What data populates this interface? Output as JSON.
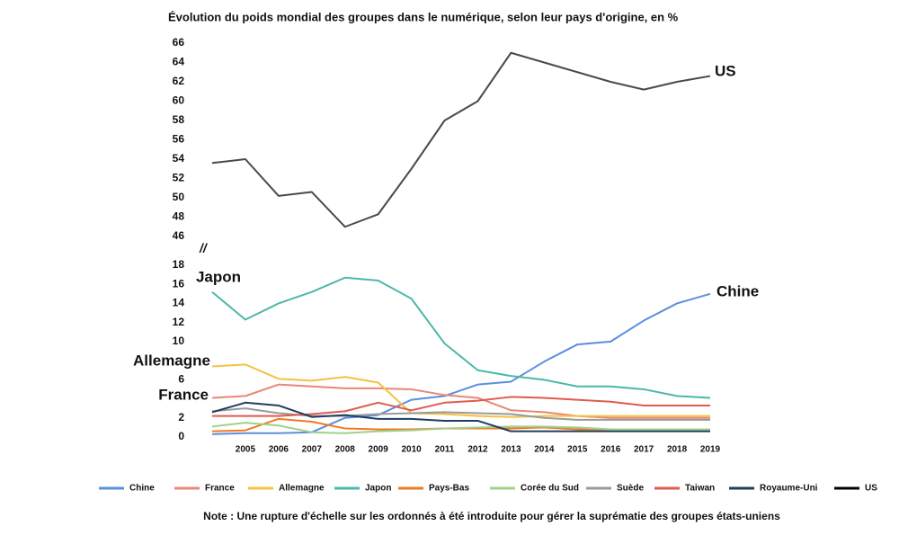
{
  "chart_data": {
    "type": "line",
    "title": "Évolution du poids mondial des groupes dans le numérique, selon leur pays d'origine, en %",
    "note": "Note : Une rupture d'échelle sur les ordonnés à été introduite pour gérer la suprématie des groupes états-uniens",
    "axis_break": "//",
    "annotations": [
      "US",
      "Chine",
      "Japon",
      "Allemagne",
      "France"
    ],
    "categories": [
      null,
      "2005",
      "2006",
      "2007",
      "2008",
      "2009",
      "2010",
      "2011",
      "2012",
      "2013",
      "2014",
      "2015",
      "2016",
      "2017",
      "2018",
      "2019"
    ],
    "ylim": [
      0,
      18
    ],
    "yticks": [
      0,
      2,
      6,
      10,
      12,
      14,
      16,
      18
    ],
    "y2lim": [
      46,
      66
    ],
    "y2ticks": [
      46,
      48,
      50,
      52,
      54,
      56,
      58,
      60,
      62,
      64,
      66
    ],
    "grid": false,
    "series": [
      {
        "name": "Chine",
        "color": "#5b8fe0",
        "values": [
          0.3,
          0.4,
          0.4,
          0.5,
          2,
          2.3,
          3.9,
          4.3,
          5.5,
          5.8,
          7.9,
          9.7,
          10,
          12.2,
          14,
          15
        ]
      },
      {
        "name": "France",
        "color": "#e8877a",
        "values": [
          4.1,
          4.3,
          5.5,
          5.3,
          5.1,
          5.1,
          5,
          4.4,
          4.1,
          2.8,
          2.6,
          2.2,
          2,
          2,
          2,
          2
        ]
      },
      {
        "name": "Allemagne",
        "color": "#f5c242",
        "values": [
          7.4,
          7.6,
          6.1,
          5.9,
          6.3,
          5.7,
          2.5,
          2.4,
          2.2,
          2.1,
          2.2,
          2.2,
          2.2,
          2.2,
          2.2,
          2.2
        ]
      },
      {
        "name": "Japon",
        "color": "#4db8a8",
        "values": [
          15.2,
          12.3,
          14,
          15.2,
          16.7,
          16.4,
          14.5,
          9.8,
          7,
          6.4,
          6,
          5.3,
          5.3,
          5,
          4.3,
          4.1
        ]
      },
      {
        "name": "Pays-Bas",
        "color": "#f07a22",
        "values": [
          0.6,
          0.7,
          1.9,
          1.6,
          0.9,
          0.8,
          0.8,
          0.9,
          0.9,
          0.9,
          1,
          0.8,
          0.8,
          0.8,
          0.8,
          0.8
        ]
      },
      {
        "name": "Corée du Sud",
        "color": "#9fd18b",
        "values": [
          1.1,
          1.5,
          1.2,
          0.5,
          0.4,
          0.6,
          0.7,
          0.9,
          1,
          1.1,
          1.1,
          1,
          0.8,
          0.8,
          0.8,
          0.8
        ]
      },
      {
        "name": "Suède",
        "color": "#9a9a9a",
        "values": [
          2.7,
          3,
          2.5,
          2.2,
          2.2,
          2.4,
          2.5,
          2.6,
          2.5,
          2.4,
          2,
          1.8,
          1.8,
          1.8,
          1.8,
          1.8
        ]
      },
      {
        "name": "Taiwan",
        "color": "#e05a4e",
        "values": [
          2.2,
          2.2,
          2.2,
          2.4,
          2.7,
          3.6,
          2.8,
          3.6,
          3.8,
          4.2,
          4.1,
          3.9,
          3.7,
          3.3,
          3.3,
          3.3
        ]
      },
      {
        "name": "Royaume-Uni",
        "color": "#1f3f5f",
        "values": [
          2.6,
          3.6,
          3.3,
          2.1,
          2.3,
          1.9,
          1.9,
          1.7,
          1.7,
          0.6,
          0.6,
          0.6,
          0.6,
          0.6,
          0.6,
          0.6
        ]
      },
      {
        "name": "US",
        "color": "#4a4a4a",
        "axis": "y2",
        "values": [
          53.6,
          54,
          50.2,
          50.6,
          47,
          48.3,
          53,
          58,
          60,
          65,
          64,
          63,
          62,
          61.2,
          62,
          62.6
        ]
      }
    ]
  }
}
